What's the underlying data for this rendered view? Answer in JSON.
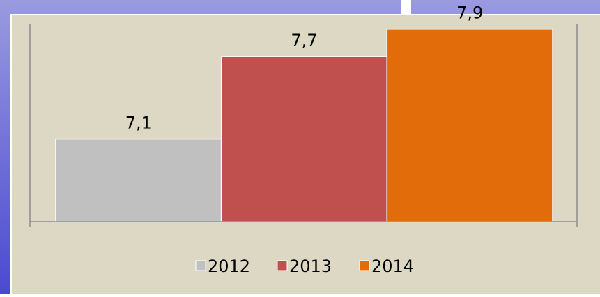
{
  "chart_data": {
    "type": "bar",
    "categories": [
      null
    ],
    "series": [
      {
        "name": "2012",
        "color": "#c0c0c0",
        "values": [
          7.1
        ],
        "value_labels": [
          "7,1"
        ]
      },
      {
        "name": "2013",
        "color": "#c0504d",
        "values": [
          7.7
        ],
        "value_labels": [
          "7,7"
        ]
      },
      {
        "name": "2014",
        "color": "#e36c0a",
        "values": [
          7.9
        ],
        "value_labels": [
          "7,9"
        ]
      }
    ],
    "ylim": [
      6.5,
      8.0
    ],
    "legend": "bottom"
  }
}
